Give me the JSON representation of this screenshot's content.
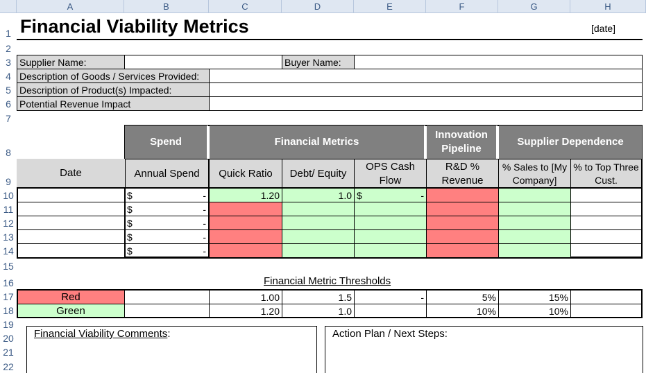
{
  "columns": [
    "A",
    "B",
    "C",
    "D",
    "E",
    "F",
    "G",
    "H"
  ],
  "rows": [
    "1",
    "2",
    "3",
    "4",
    "5",
    "6",
    "7",
    "8",
    "9",
    "10",
    "11",
    "12",
    "13",
    "14",
    "15",
    "16",
    "17",
    "18",
    "19",
    "20",
    "21",
    "22"
  ],
  "title": "Financial Viability Metrics",
  "date_label": "[date]",
  "supplier_name_label": "Supplier Name:",
  "buyer_name_label": "Buyer Name:",
  "goods_label": "Description of Goods / Services Provided:",
  "products_label": "Description of Product(s) Impacted:",
  "revenue_impact_label": "Potential Revenue Impact",
  "groups": {
    "spend": "Spend",
    "financial_metrics": "Financial Metrics",
    "innovation": "Innovation Pipeline",
    "dependence": "Supplier Dependence"
  },
  "subheaders": {
    "date": "Date",
    "annual_spend": "Annual Spend",
    "quick_ratio": "Quick Ratio",
    "debt_equity": "Debt/ Equity",
    "ops_cash_flow": "OPS Cash Flow",
    "rd_revenue": "R&D % Revenue",
    "sales_my_company": "% Sales to [My Company]",
    "top_three": "% to Top Three Cust."
  },
  "data_rows": [
    {
      "dollar": "$",
      "spend": "-",
      "quick_ratio": "1.20",
      "debt_equity": "1.0",
      "ops_dollar": "$",
      "ops": "-"
    },
    {
      "dollar": "$",
      "spend": "-",
      "quick_ratio": "",
      "debt_equity": "",
      "ops_dollar": "",
      "ops": ""
    },
    {
      "dollar": "$",
      "spend": "-",
      "quick_ratio": "",
      "debt_equity": "",
      "ops_dollar": "",
      "ops": ""
    },
    {
      "dollar": "$",
      "spend": "-",
      "quick_ratio": "",
      "debt_equity": "",
      "ops_dollar": "",
      "ops": ""
    },
    {
      "dollar": "$",
      "spend": "-",
      "quick_ratio": "",
      "debt_equity": "",
      "ops_dollar": "",
      "ops": ""
    }
  ],
  "thresholds_title": "Financial Metric Thresholds",
  "thresholds": {
    "red": {
      "label": "Red",
      "quick_ratio": "1.00",
      "debt_equity": "1.5",
      "ops": "-",
      "rd": "5%",
      "sales": "15%"
    },
    "green": {
      "label": "Green",
      "quick_ratio": "1.20",
      "debt_equity": "1.0",
      "ops": "",
      "rd": "10%",
      "sales": "10%"
    }
  },
  "comments_label": "Financial Viability Comments",
  "comments_colon": ":",
  "action_plan_label": "Action Plan / Next Steps:",
  "colors": {
    "red": "#ff8080",
    "green": "#ccffcc",
    "header_dark": "#808080",
    "header_light": "#d9d9d9"
  }
}
